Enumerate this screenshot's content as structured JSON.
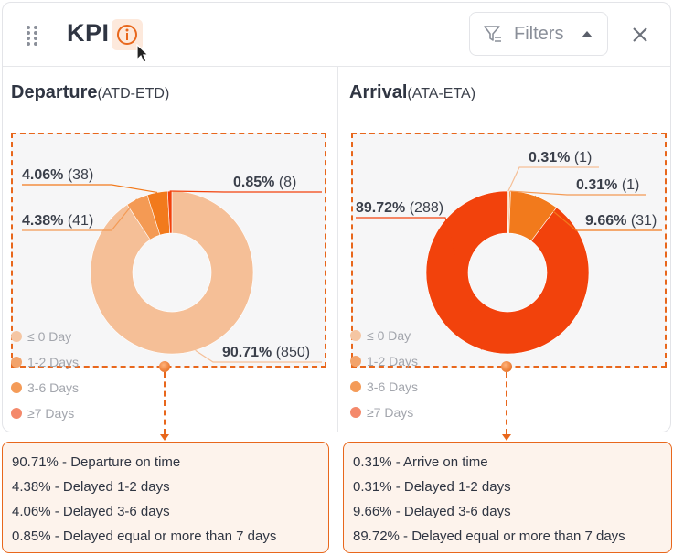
{
  "header": {
    "title": "KPI",
    "filters_label": "Filters"
  },
  "departure": {
    "title_bold": "Departure",
    "title_sub": "(ATD-ETD)",
    "notes": [
      "90.71% - Departure on time",
      "4.38% - Delayed 1-2 days",
      "4.06% - Delayed 3-6 days",
      "0.85% - Delayed equal or more than 7 days"
    ]
  },
  "arrival": {
    "title_bold": "Arrival",
    "title_sub": "(ATA-ETA)",
    "notes": [
      "0.31% - Arrive on time",
      "0.31% - Delayed 1-2 days",
      "9.66% - Delayed 3-6 days",
      "89.72% - Delayed equal or more than 7 days"
    ]
  },
  "legend": [
    {
      "label": "≤ 0 Day",
      "color": "#f5c6a3"
    },
    {
      "label": "1-2 Days",
      "color": "#f2a36b"
    },
    {
      "label": "3-6 Days",
      "color": "#f49b58"
    },
    {
      "label": "≥7 Days",
      "color": "#f4896b"
    }
  ],
  "chart_data": [
    {
      "type": "pie",
      "title": "Departure(ATD-ETD)",
      "categories": [
        "≤ 0 Day",
        "1-2 Days",
        "3-6 Days",
        "≥7 Days"
      ],
      "values": [
        90.71,
        4.38,
        4.06,
        0.85
      ],
      "counts": [
        850,
        41,
        38,
        8
      ],
      "percent_labels": [
        "90.71%",
        "4.38%",
        "4.06%",
        "0.85%"
      ],
      "count_labels": [
        "(850)",
        "(41)",
        "(38)",
        "(8)"
      ],
      "colors": [
        "#f5bf97",
        "#f49a54",
        "#f27a1c",
        "#f2420c"
      ]
    },
    {
      "type": "pie",
      "title": "Arrival(ATA-ETA)",
      "categories": [
        "≤ 0 Day",
        "1-2 Days",
        "3-6 Days",
        "≥7 Days"
      ],
      "values": [
        0.31,
        0.31,
        9.66,
        89.72
      ],
      "counts": [
        1,
        1,
        31,
        288
      ],
      "percent_labels": [
        "0.31%",
        "0.31%",
        "9.66%",
        "89.72%"
      ],
      "count_labels": [
        "(1)",
        "(1)",
        "(31)",
        "(288)"
      ],
      "colors": [
        "#f5bf97",
        "#f49a54",
        "#f27a1c",
        "#f2420c"
      ]
    }
  ]
}
